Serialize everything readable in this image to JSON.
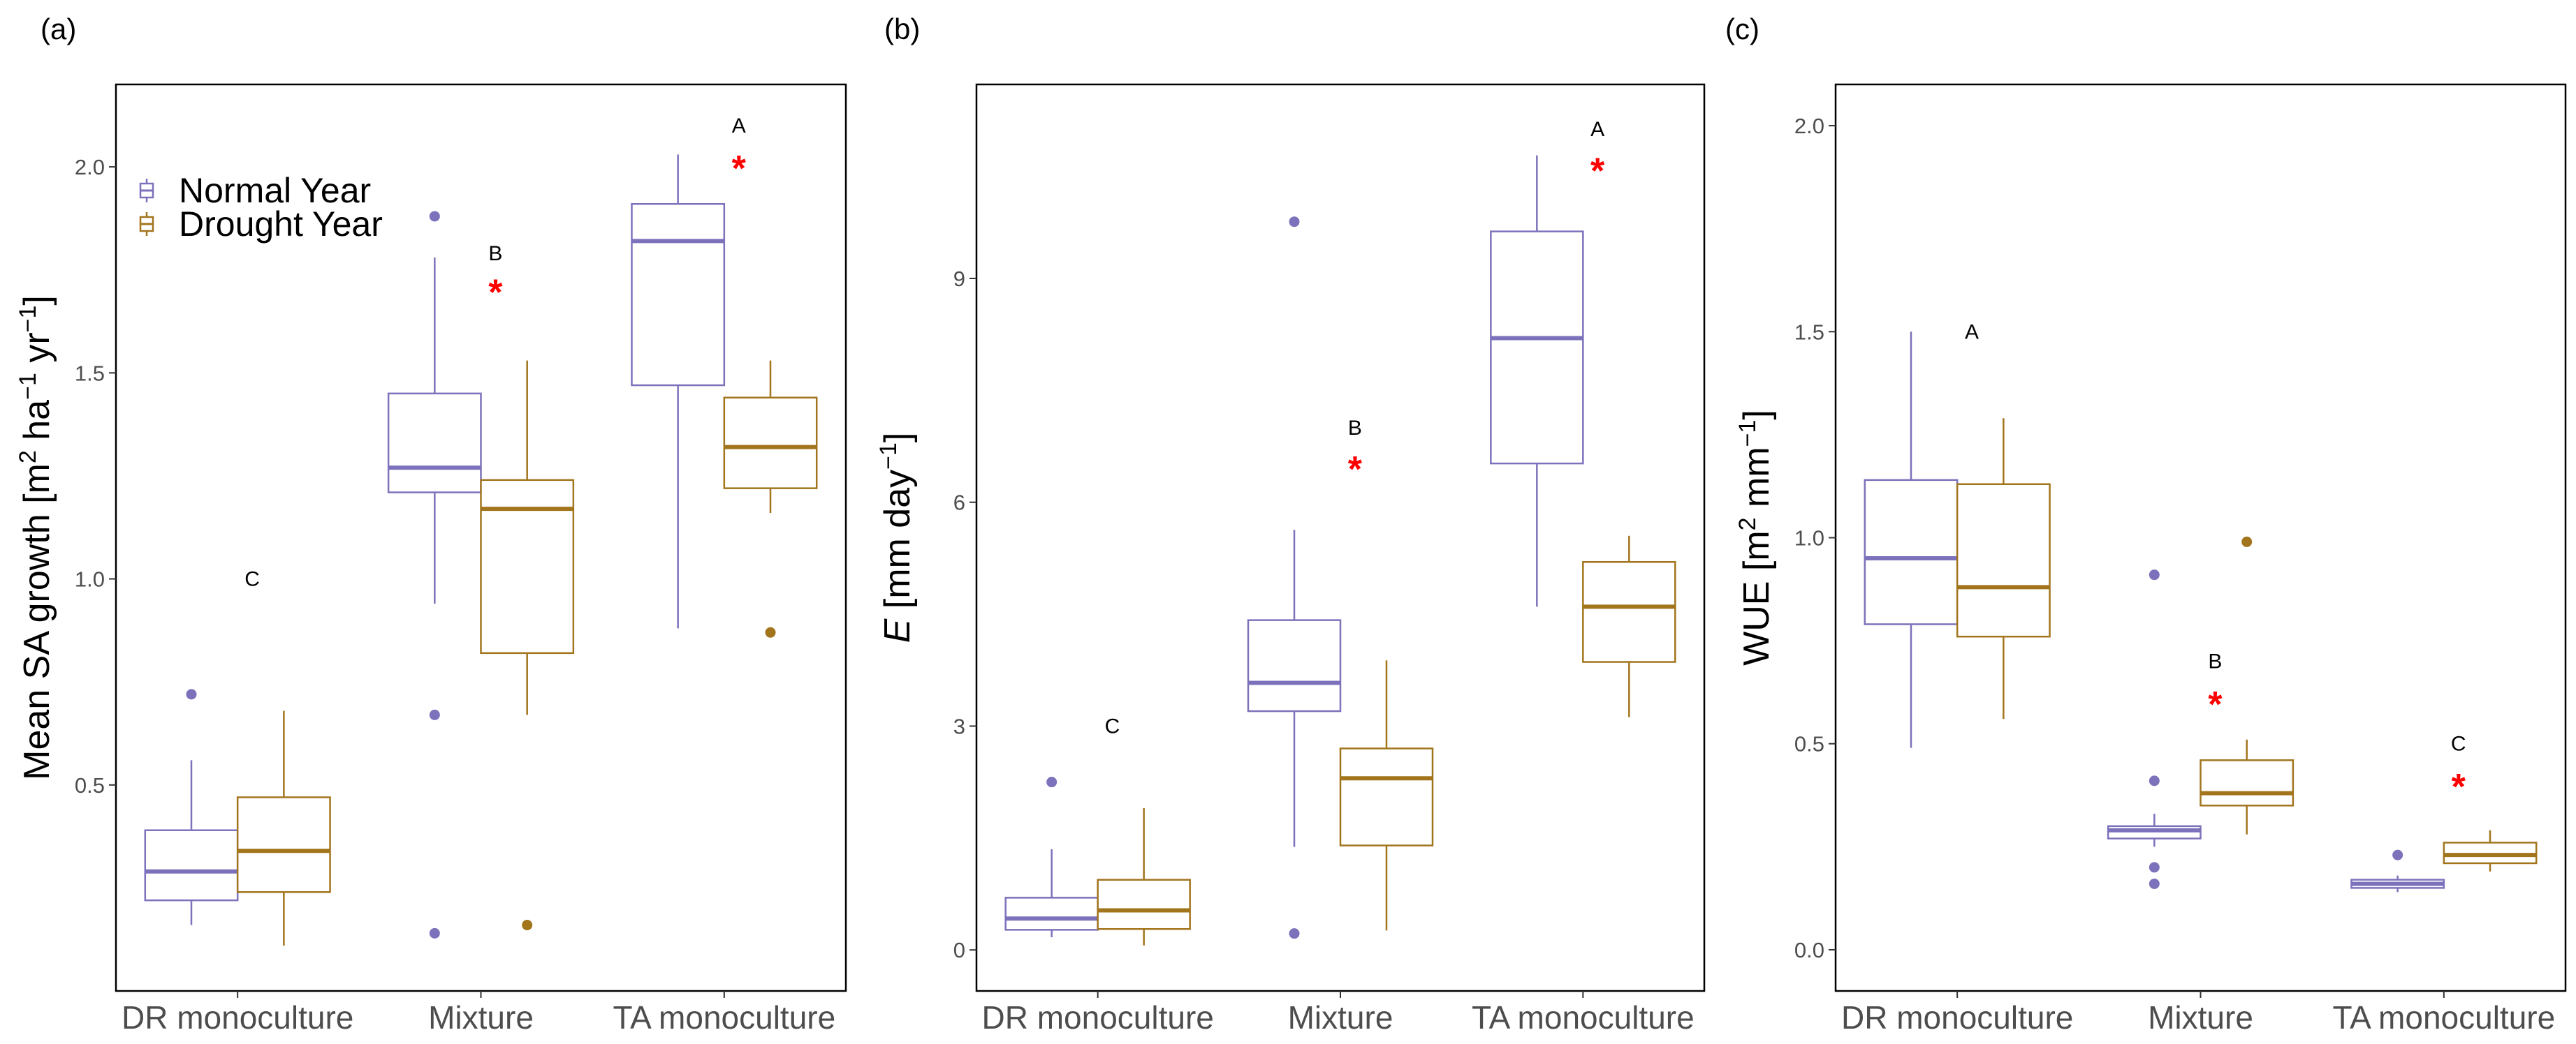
{
  "legend": [
    {
      "label": "Normal Year",
      "color": "#7b72bb"
    },
    {
      "label": "Drought Year",
      "color": "#a2751d"
    }
  ],
  "chart_data": [
    {
      "type": "box",
      "panel_label": "(a)",
      "ylabel": "Mean SA growth [m² ha⁻¹ yr⁻¹]",
      "ylabel_parts": {
        "main": "Mean SA growth [m",
        "sup1": "2",
        "mid1": " ha",
        "sup2": "−1",
        "mid2": " yr",
        "sup3": "−1",
        "end": "]"
      },
      "ylim": [
        0.0,
        2.2
      ],
      "yticks": [
        0.5,
        1.0,
        1.5,
        2.0
      ],
      "ytick_labels": [
        "0.5",
        "1.0",
        "1.5",
        "2.0"
      ],
      "categories": [
        "DR monoculture",
        "Mixture",
        "TA monoculture"
      ],
      "series": [
        {
          "name": "Normal Year",
          "boxes": [
            {
              "whislo": 0.16,
              "q1": 0.22,
              "med": 0.29,
              "q3": 0.39,
              "whishi": 0.56,
              "fliers": [
                0.72
              ]
            },
            {
              "whislo": 0.94,
              "q1": 1.21,
              "med": 1.27,
              "q3": 1.45,
              "whishi": 1.78,
              "fliers": [
                1.88,
                0.67,
                0.14
              ]
            },
            {
              "whislo": 0.88,
              "q1": 1.47,
              "med": 1.82,
              "q3": 1.91,
              "whishi": 2.03,
              "fliers": []
            }
          ]
        },
        {
          "name": "Drought Year",
          "boxes": [
            {
              "whislo": 0.11,
              "q1": 0.24,
              "med": 0.34,
              "q3": 0.47,
              "whishi": 0.68,
              "fliers": []
            },
            {
              "whislo": 0.67,
              "q1": 0.82,
              "med": 1.17,
              "q3": 1.24,
              "whishi": 1.53,
              "fliers": [
                0.16
              ]
            },
            {
              "whislo": 1.16,
              "q1": 1.22,
              "med": 1.32,
              "q3": 1.44,
              "whishi": 1.53,
              "fliers": [
                0.87
              ]
            }
          ]
        }
      ],
      "annotations": [
        {
          "category_index": 0,
          "letter": "C",
          "letter_y": 1.0,
          "star": false,
          "star_y": null
        },
        {
          "category_index": 1,
          "letter": "B",
          "letter_y": 1.79,
          "star": true,
          "star_y": 1.71
        },
        {
          "category_index": 2,
          "letter": "A",
          "letter_y": 2.1,
          "star": true,
          "star_y": 2.01
        }
      ]
    },
    {
      "type": "box",
      "panel_label": "(b)",
      "ylabel": "E [mm day⁻¹]",
      "ylabel_parts": {
        "italic": "E",
        "main": " [mm day",
        "sup1": "−1",
        "end": "]"
      },
      "ylim": [
        -0.55,
        11.6
      ],
      "yticks": [
        0,
        3,
        6,
        9
      ],
      "ytick_labels": [
        "0",
        "3",
        "6",
        "9"
      ],
      "categories": [
        "DR monoculture",
        "Mixture",
        "TA monoculture"
      ],
      "series": [
        {
          "name": "Normal Year",
          "boxes": [
            {
              "whislo": 0.17,
              "q1": 0.27,
              "med": 0.42,
              "q3": 0.7,
              "whishi": 1.35,
              "fliers": [
                2.25
              ]
            },
            {
              "whislo": 1.38,
              "q1": 3.2,
              "med": 3.58,
              "q3": 4.42,
              "whishi": 5.63,
              "fliers": [
                9.76,
                0.22
              ]
            },
            {
              "whislo": 4.6,
              "q1": 6.52,
              "med": 8.2,
              "q3": 9.63,
              "whishi": 10.65,
              "fliers": []
            }
          ]
        },
        {
          "name": "Drought Year",
          "boxes": [
            {
              "whislo": 0.06,
              "q1": 0.28,
              "med": 0.53,
              "q3": 0.94,
              "whishi": 1.9,
              "fliers": []
            },
            {
              "whislo": 0.26,
              "q1": 1.4,
              "med": 2.3,
              "q3": 2.7,
              "whishi": 3.88,
              "fliers": []
            },
            {
              "whislo": 3.12,
              "q1": 3.86,
              "med": 4.6,
              "q3": 5.2,
              "whishi": 5.55,
              "fliers": []
            }
          ]
        }
      ],
      "annotations": [
        {
          "category_index": 0,
          "letter": "C",
          "letter_y": 3.0,
          "star": false,
          "star_y": null
        },
        {
          "category_index": 1,
          "letter": "B",
          "letter_y": 7.0,
          "star": true,
          "star_y": 6.52
        },
        {
          "category_index": 2,
          "letter": "A",
          "letter_y": 11.0,
          "star": true,
          "star_y": 10.52
        }
      ]
    },
    {
      "type": "box",
      "panel_label": "(c)",
      "ylabel": "WUE [m² mm⁻¹]",
      "ylabel_parts": {
        "main": "WUE [m",
        "sup1": "2",
        "mid1": " mm",
        "sup2": "−1",
        "end": "]"
      },
      "ylim": [
        -0.1,
        2.1
      ],
      "yticks": [
        0.0,
        0.5,
        1.0,
        1.5,
        2.0
      ],
      "ytick_labels": [
        "0.0",
        "0.5",
        "1.0",
        "1.5",
        "2.0"
      ],
      "categories": [
        "DR monoculture",
        "Mixture",
        "TA monoculture"
      ],
      "series": [
        {
          "name": "Normal Year",
          "boxes": [
            {
              "whislo": 0.49,
              "q1": 0.79,
              "med": 0.95,
              "q3": 1.14,
              "whishi": 1.5,
              "fliers": []
            },
            {
              "whislo": 0.25,
              "q1": 0.27,
              "med": 0.29,
              "q3": 0.3,
              "whishi": 0.33,
              "fliers": [
                0.91,
                0.41,
                0.2,
                0.16
              ]
            },
            {
              "whislo": 0.14,
              "q1": 0.15,
              "med": 0.16,
              "q3": 0.17,
              "whishi": 0.18,
              "fliers": [
                0.23
              ]
            }
          ]
        },
        {
          "name": "Drought Year",
          "boxes": [
            {
              "whislo": 0.56,
              "q1": 0.76,
              "med": 0.88,
              "q3": 1.13,
              "whishi": 1.29,
              "fliers": []
            },
            {
              "whislo": 0.28,
              "q1": 0.35,
              "med": 0.38,
              "q3": 0.46,
              "whishi": 0.51,
              "fliers": [
                0.99
              ]
            },
            {
              "whislo": 0.19,
              "q1": 0.21,
              "med": 0.23,
              "q3": 0.26,
              "whishi": 0.29,
              "fliers": []
            }
          ]
        }
      ],
      "annotations": [
        {
          "category_index": 0,
          "letter": "A",
          "letter_y": 1.5,
          "star": false,
          "star_y": null
        },
        {
          "category_index": 1,
          "letter": "B",
          "letter_y": 0.7,
          "star": true,
          "star_y": 0.61
        },
        {
          "category_index": 2,
          "letter": "C",
          "letter_y": 0.5,
          "star": true,
          "star_y": 0.41
        }
      ]
    }
  ]
}
